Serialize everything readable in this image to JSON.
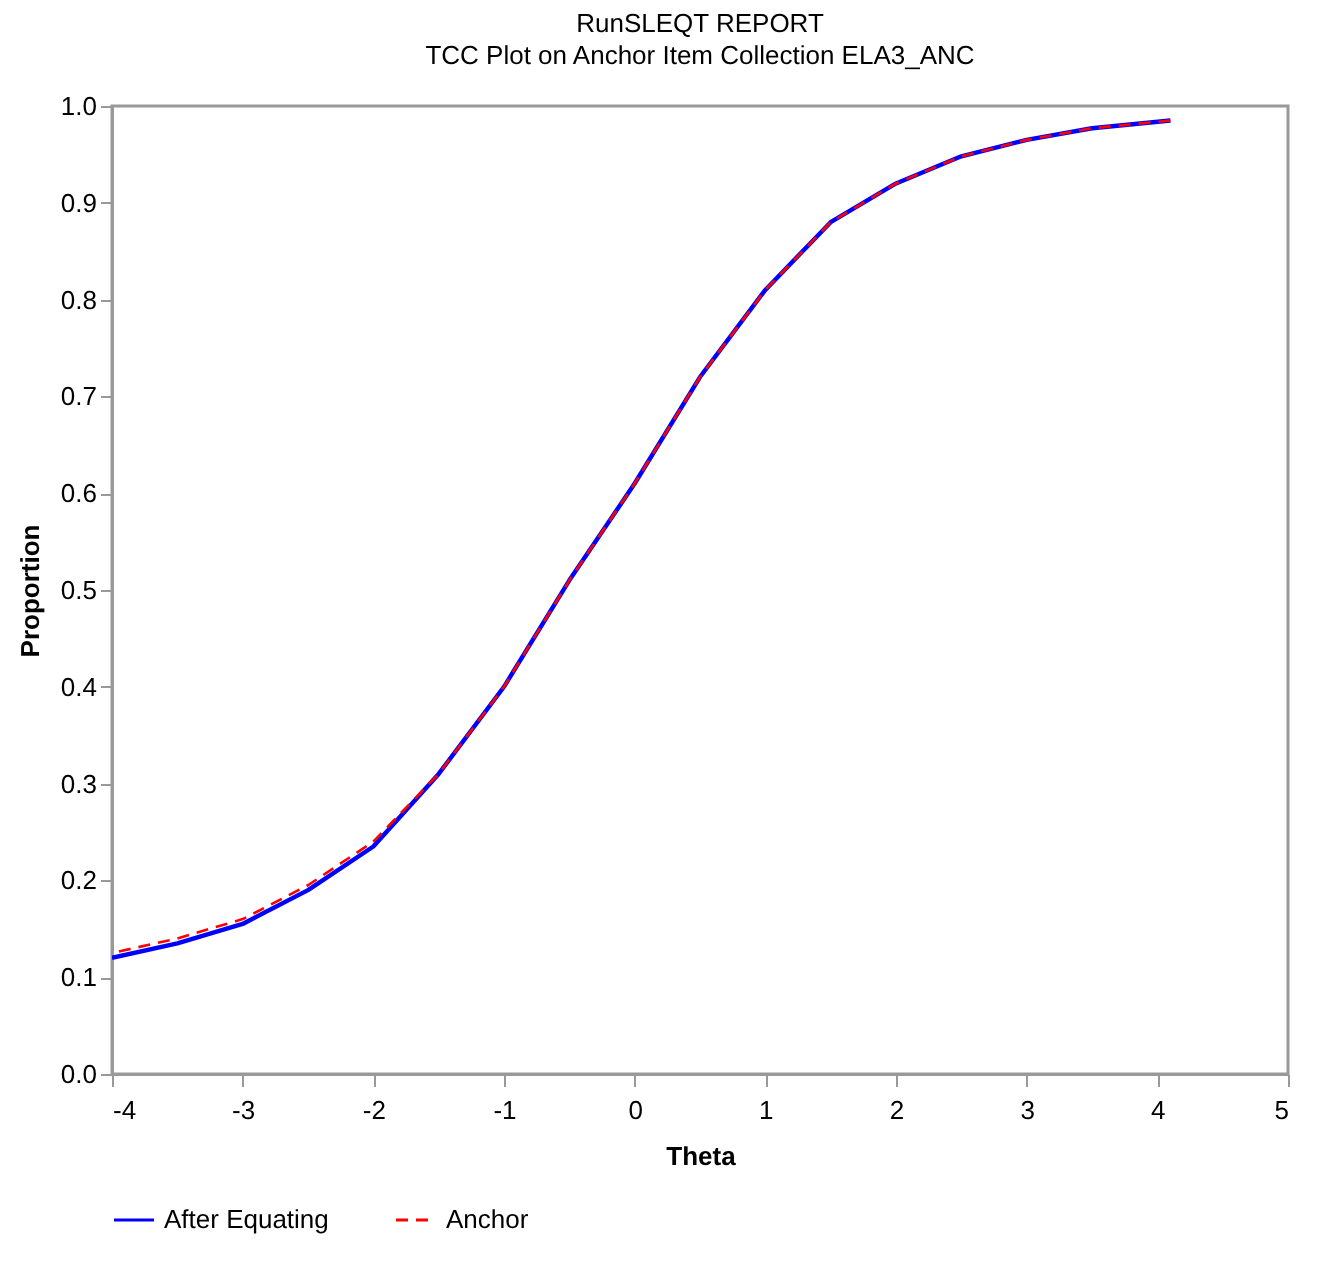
{
  "chart_data": {
    "type": "line",
    "title": "RunSLEQT REPORT",
    "subtitle": "TCC Plot on Anchor Item Collection ELA3_ANC",
    "xlabel": "Theta",
    "ylabel": "Proportion",
    "x": [
      -4,
      -3.5,
      -3,
      -2.5,
      -2,
      -1.5,
      -1,
      -0.5,
      0,
      0.5,
      1,
      1.5,
      2,
      2.5,
      3,
      3.5,
      4.1
    ],
    "series": [
      {
        "name": "After Equating",
        "color": "#0000ff",
        "line_style": "solid",
        "values": [
          0.12,
          0.135,
          0.155,
          0.19,
          0.235,
          0.31,
          0.4,
          0.51,
          0.61,
          0.72,
          0.81,
          0.88,
          0.92,
          0.948,
          0.965,
          0.977,
          0.985
        ]
      },
      {
        "name": "Anchor",
        "color": "#ff0000",
        "line_style": "dashed",
        "values": [
          0.125,
          0.14,
          0.16,
          0.195,
          0.24,
          0.31,
          0.4,
          0.51,
          0.61,
          0.72,
          0.81,
          0.88,
          0.92,
          0.948,
          0.965,
          0.977,
          0.985
        ]
      }
    ],
    "xlim": [
      -4,
      5
    ],
    "xticks": [
      -4,
      -3,
      -2,
      -1,
      0,
      1,
      2,
      3,
      4,
      5
    ],
    "ylim": [
      0,
      1
    ],
    "yticks": [
      {
        "value": 0,
        "label": "0.0"
      },
      0.1,
      0.2,
      0.3,
      0.4,
      0.5,
      0.6,
      0.7,
      0.8,
      0.9,
      {
        "value": 1,
        "label": "1.0"
      }
    ],
    "grid": false,
    "legend": "bottom",
    "marker": "none"
  }
}
